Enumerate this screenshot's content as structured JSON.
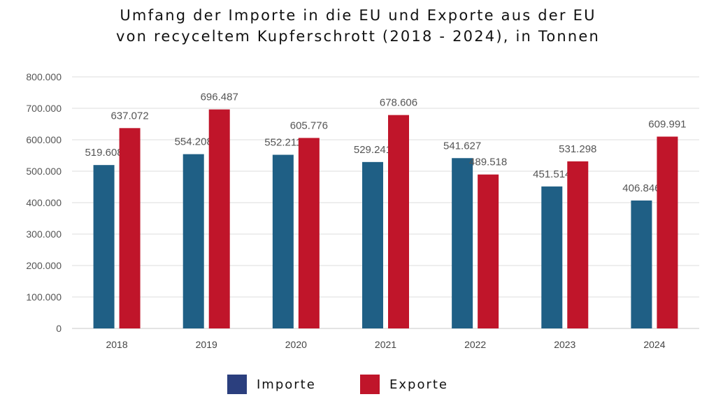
{
  "chart_data": {
    "type": "bar",
    "title": [
      "Umfang der Importe in die EU und Exporte aus der EU",
      "von recyceltem Kupferschrott (2018 - 2024), in Tonnen"
    ],
    "categories": [
      "2018",
      "2019",
      "2020",
      "2021",
      "2022",
      "2023",
      "2024"
    ],
    "series": [
      {
        "name": "Importe",
        "color": "#1f5f85",
        "legend_color": "#2b3f7e",
        "values": [
          519608,
          554208,
          552211,
          529241,
          541627,
          451514,
          406846
        ],
        "labels": [
          "519.608",
          "554.208",
          "552.211",
          "529.241",
          "541.627",
          "451.514",
          "406.846"
        ]
      },
      {
        "name": "Exporte",
        "color": "#c0152a",
        "legend_color": "#c0152a",
        "values": [
          637072,
          696487,
          605776,
          678606,
          489518,
          531298,
          609991
        ],
        "labels": [
          "637.072",
          "696.487",
          "605.776",
          "678.606",
          "489.518",
          "531.298",
          "609.991"
        ]
      }
    ],
    "ylim": [
      0,
      800000
    ],
    "yticks": [
      0,
      100000,
      200000,
      300000,
      400000,
      500000,
      600000,
      700000,
      800000
    ],
    "ytick_labels": [
      "0",
      "100.000",
      "200.000",
      "300.000",
      "400.000",
      "500.000",
      "600.000",
      "700.000",
      "800.000"
    ],
    "xlabel": "",
    "ylabel": "",
    "grid": true,
    "legend": "bottom-center"
  }
}
